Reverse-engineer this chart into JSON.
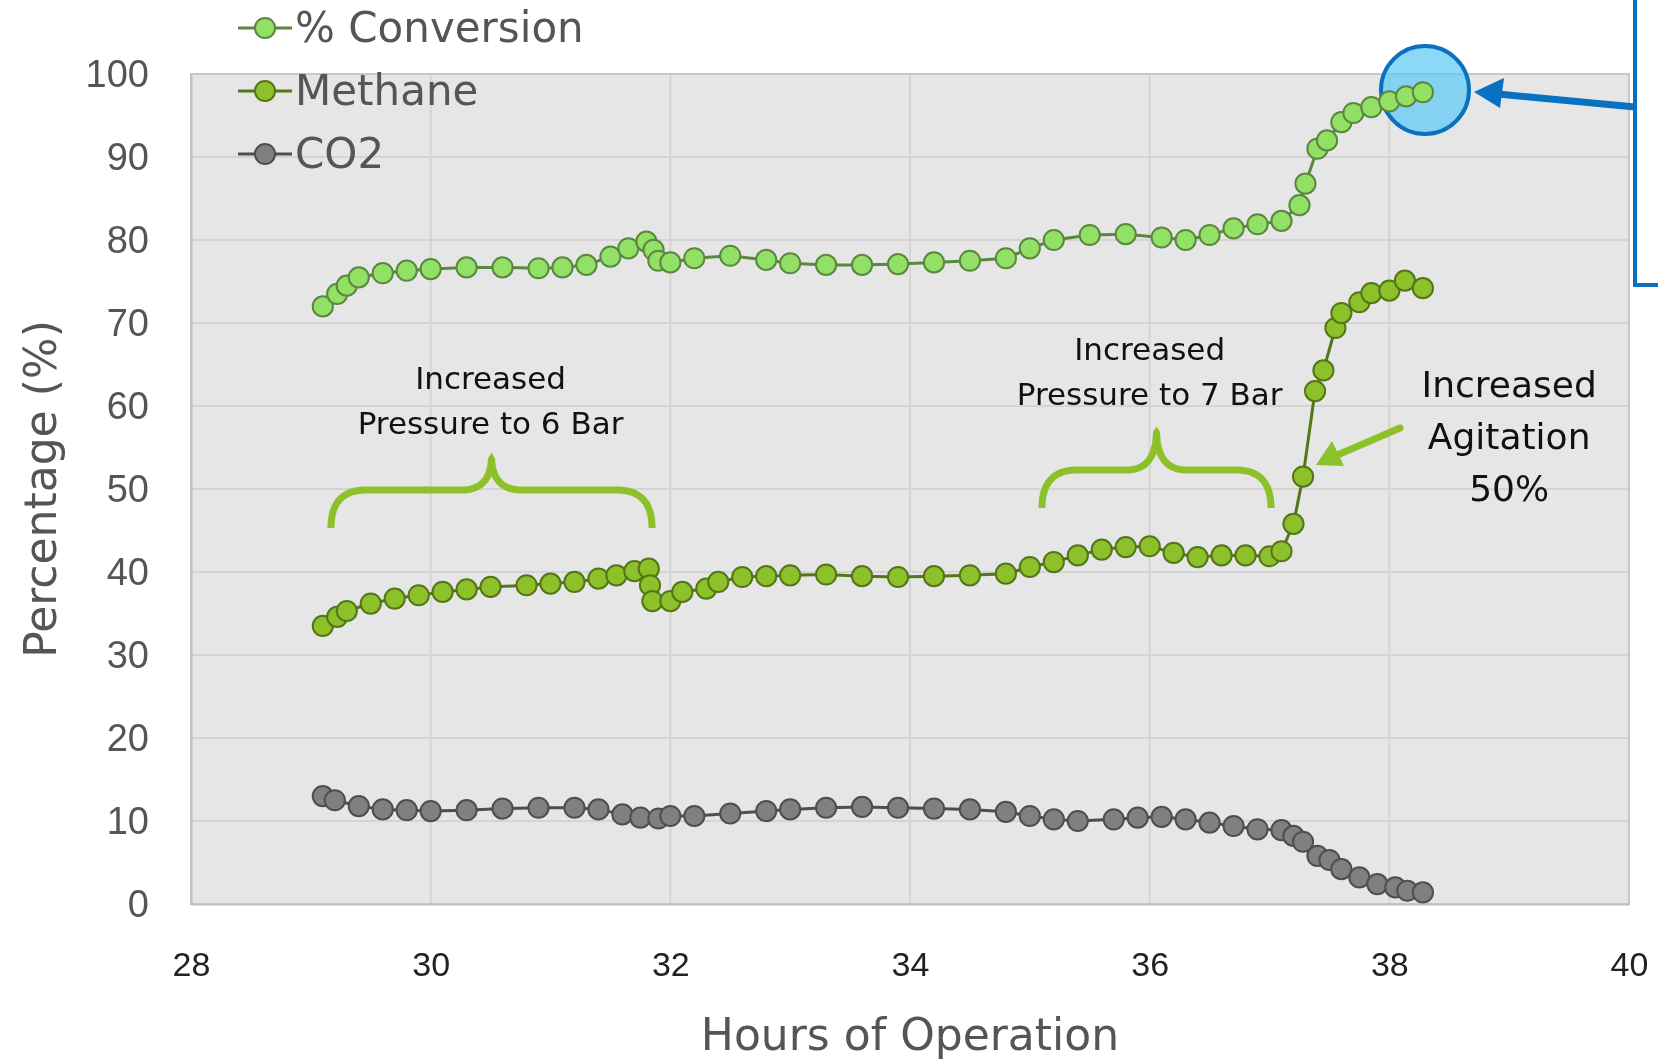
{
  "chart_data": {
    "type": "line",
    "xlabel": "Hours of Operation",
    "ylabel": "Percentage (%)",
    "xlim": [
      28,
      40
    ],
    "xticks": [
      28,
      30,
      32,
      34,
      36,
      38,
      40
    ],
    "ylim": [
      0,
      100
    ],
    "yticks": [
      0,
      10,
      20,
      30,
      40,
      50,
      60,
      70,
      80,
      90,
      100
    ],
    "grid": true,
    "legend": "top left",
    "marker": "circle",
    "line_style": "solid",
    "annotations": [
      "Increased\nPressure to 6 Bar",
      "Increased\nPressure to 7 Bar",
      "Increased\nAgitation\n50%"
    ],
    "series": [
      {
        "name": "% Conversion",
        "color": "#92e066",
        "x": [
          29.1,
          29.22,
          29.3,
          29.4,
          29.6,
          29.8,
          30.0,
          30.3,
          30.6,
          30.9,
          31.1,
          31.3,
          31.5,
          31.65,
          31.8,
          31.86,
          31.9,
          32.0,
          32.2,
          32.5,
          32.8,
          33.0,
          33.3,
          33.6,
          33.9,
          34.2,
          34.5,
          34.8,
          35.0,
          35.2,
          35.5,
          35.8,
          36.1,
          36.3,
          36.5,
          36.7,
          36.9,
          37.1,
          37.25,
          37.3,
          37.4,
          37.48,
          37.6,
          37.7,
          37.85,
          38.0,
          38.14,
          38.28
        ],
        "values": [
          72,
          73.5,
          74.5,
          75.5,
          76,
          76.3,
          76.5,
          76.7,
          76.7,
          76.6,
          76.7,
          77,
          78,
          79,
          79.8,
          78.8,
          77.5,
          77.3,
          77.8,
          78.1,
          77.6,
          77.2,
          77,
          77,
          77.1,
          77.3,
          77.5,
          77.8,
          79,
          80,
          80.6,
          80.7,
          80.3,
          80,
          80.6,
          81.4,
          81.9,
          82.3,
          84.2,
          86.8,
          91,
          92,
          94.2,
          95.3,
          96,
          96.7,
          97.3,
          97.8
        ]
      },
      {
        "name": "Methane",
        "color": "#8cc12a",
        "x": [
          29.1,
          29.22,
          29.3,
          29.5,
          29.7,
          29.9,
          30.1,
          30.3,
          30.5,
          30.8,
          31.0,
          31.2,
          31.4,
          31.55,
          31.7,
          31.82,
          31.83,
          31.85,
          32.0,
          32.1,
          32.3,
          32.4,
          32.6,
          32.8,
          33.0,
          33.3,
          33.6,
          33.9,
          34.2,
          34.5,
          34.8,
          35.0,
          35.2,
          35.4,
          35.6,
          35.8,
          36.0,
          36.2,
          36.4,
          36.6,
          36.8,
          37.0,
          37.1,
          37.2,
          37.28,
          37.38,
          37.45,
          37.55,
          37.6,
          37.75,
          37.85,
          38.0,
          38.13,
          38.28
        ],
        "values": [
          33.5,
          34.6,
          35.3,
          36.2,
          36.8,
          37.2,
          37.6,
          37.9,
          38.2,
          38.4,
          38.6,
          38.8,
          39.2,
          39.6,
          40.1,
          40.4,
          38.4,
          36.5,
          36.5,
          37.6,
          38,
          38.8,
          39.4,
          39.5,
          39.6,
          39.7,
          39.5,
          39.4,
          39.5,
          39.6,
          39.8,
          40.6,
          41.2,
          42,
          42.7,
          43,
          43.1,
          42.3,
          41.8,
          42,
          42,
          41.9,
          42.5,
          45.8,
          51.5,
          61.8,
          64.3,
          69.4,
          71.2,
          72.5,
          73.6,
          73.9,
          75.1,
          74.2
        ]
      },
      {
        "name": "CO2",
        "color": "#808080",
        "x": [
          29.1,
          29.2,
          29.4,
          29.6,
          29.8,
          30.0,
          30.3,
          30.6,
          30.9,
          31.2,
          31.4,
          31.6,
          31.75,
          31.9,
          32.0,
          32.2,
          32.5,
          32.8,
          33.0,
          33.3,
          33.6,
          33.9,
          34.2,
          34.5,
          34.8,
          35.0,
          35.2,
          35.4,
          35.7,
          35.9,
          36.1,
          36.3,
          36.5,
          36.7,
          36.9,
          37.1,
          37.2,
          37.28,
          37.4,
          37.5,
          37.6,
          37.75,
          37.9,
          38.05,
          38.15,
          38.28
        ],
        "values": [
          13,
          12.5,
          11.8,
          11.4,
          11.3,
          11.2,
          11.3,
          11.5,
          11.6,
          11.6,
          11.4,
          10.8,
          10.4,
          10.3,
          10.6,
          10.6,
          10.9,
          11.2,
          11.4,
          11.6,
          11.7,
          11.6,
          11.5,
          11.4,
          11.1,
          10.6,
          10.2,
          10.0,
          10.2,
          10.4,
          10.5,
          10.2,
          9.8,
          9.4,
          9.0,
          8.9,
          8.2,
          7.5,
          5.8,
          5.3,
          4.2,
          3.2,
          2.4,
          2.0,
          1.6,
          1.4
        ]
      }
    ]
  }
}
